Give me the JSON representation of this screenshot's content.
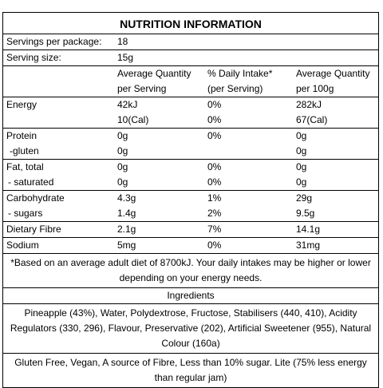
{
  "title": "NUTRITION INFORMATION",
  "servings_label": "Servings per package:",
  "servings_value": "18",
  "serving_size_label": "Serving size:",
  "serving_size_value": "15g",
  "headers": {
    "avg_qty_line1": "Average Quantity",
    "avg_qty_line2": "per Serving",
    "daily_line1": "% Daily Intake*",
    "daily_line2": "(per Serving)",
    "per100_line1": "Average Quantity",
    "per100_line2": "per 100g"
  },
  "energy": {
    "label": "Energy",
    "serving_kj": "42kJ",
    "daily_kj": "0%",
    "per100_kj": "282kJ",
    "serving_cal": "10(Cal)",
    "daily_cal": "0%",
    "per100_cal": "67(Cal)"
  },
  "nutrients": [
    {
      "label": "Protein",
      "serving": "0g",
      "daily": "0%",
      "per100": "0g"
    },
    {
      "label": "-gluten",
      "serving": "0g",
      "daily": "",
      "per100": "0g"
    },
    {
      "label": "Fat, total",
      "serving": "0g",
      "daily": "0%",
      "per100": "0g"
    },
    {
      "label": " - saturated",
      "serving": "0g",
      "daily": "0%",
      "per100": "0g"
    },
    {
      "label": "Carbohydrate",
      "serving": "4.3g",
      "daily": "1%",
      "per100": "29g"
    },
    {
      "label": " - sugars",
      "serving": "1.4g",
      "daily": "2%",
      "per100": "9.5g"
    },
    {
      "label": "Dietary Fibre",
      "serving": "2.1g",
      "daily": "7%",
      "per100": "14.1g"
    },
    {
      "label": "Sodium",
      "serving": "5mg",
      "daily": "0%",
      "per100": "31mg"
    }
  ],
  "footnote": "*Based on an average adult diet of 8700kJ. Your daily intakes may be higher or lower depending on your energy needs.",
  "ingredients_heading": "Ingredients",
  "ingredients": "Pineapple (43%), Water, Polydextrose, Fructose, Stabilisers (440, 410), Acidity Regulators (330, 296), Flavour, Preservative (202), Artificial Sweetener (955), Natural Colour (160a)",
  "claims": "Gluten Free, Vegan, A source of Fibre, Less than 10% sugar. Lite (75% less energy than regular jam)"
}
